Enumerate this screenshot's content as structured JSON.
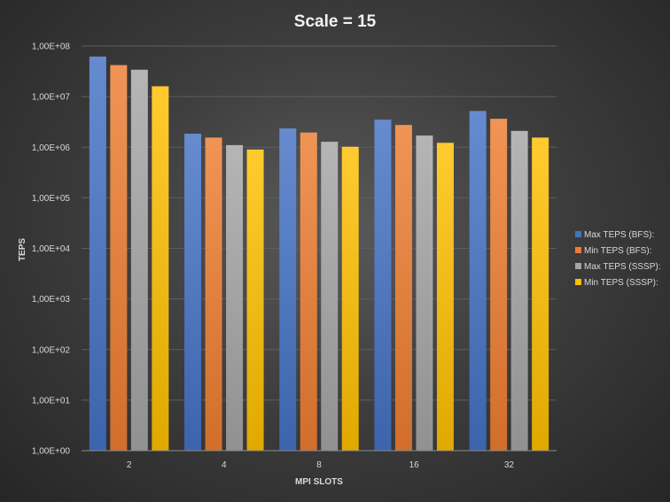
{
  "chart_data": {
    "type": "bar",
    "title": "Scale = 15",
    "xlabel": "MPI SLOTS",
    "ylabel": "TEPS",
    "yscale": "log",
    "ylim": [
      1,
      100000000
    ],
    "yticks": [
      {
        "value": 1,
        "label": "1,00E+00"
      },
      {
        "value": 10,
        "label": "1,00E+01"
      },
      {
        "value": 100,
        "label": "1,00E+02"
      },
      {
        "value": 1000,
        "label": "1,00E+03"
      },
      {
        "value": 10000,
        "label": "1,00E+04"
      },
      {
        "value": 100000,
        "label": "1,00E+05"
      },
      {
        "value": 1000000,
        "label": "1,00E+06"
      },
      {
        "value": 10000000,
        "label": "1,00E+07"
      },
      {
        "value": 100000000,
        "label": "1,00E+08"
      }
    ],
    "categories": [
      "2",
      "4",
      "8",
      "16",
      "32"
    ],
    "grid": true,
    "legend_position": "right",
    "series": [
      {
        "name": "Max TEPS (BFS):",
        "color": "#4472c4",
        "values": [
          62000000,
          1850000,
          2350000,
          3500000,
          5200000
        ]
      },
      {
        "name": "Min TEPS (BFS):",
        "color": "#ed7d31",
        "values": [
          42000000,
          1550000,
          1950000,
          2750000,
          3650000
        ]
      },
      {
        "name": "Max TEPS (SSSP):",
        "color": "#a5a5a5",
        "values": [
          34000000,
          1100000,
          1280000,
          1700000,
          2100000
        ]
      },
      {
        "name": "Min TEPS (SSSP):",
        "color": "#ffc000",
        "values": [
          16000000,
          900000,
          1020000,
          1220000,
          1550000
        ]
      }
    ]
  }
}
